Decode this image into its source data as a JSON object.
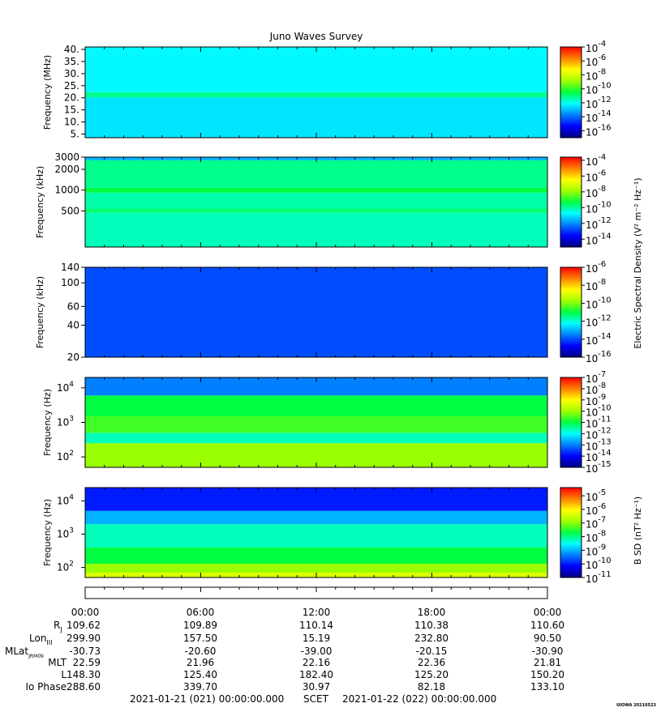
{
  "title": "Juno Waves Survey",
  "colorscale": [
    "#000080",
    "#0000ff",
    "#0080ff",
    "#00ffff",
    "#00ff40",
    "#a0ff00",
    "#ffff00",
    "#ff8000",
    "#ff0000"
  ],
  "chart_data": [
    {
      "type": "heatmap",
      "ylabel": "Frequency (MHz)",
      "yscale": "linear",
      "ylim": [
        3.5,
        41
      ],
      "yticks": [
        {
          "v": 5,
          "label": "5."
        },
        {
          "v": 10,
          "label": "10."
        },
        {
          "v": 15,
          "label": "15."
        },
        {
          "v": 20,
          "label": "20."
        },
        {
          "v": 25,
          "label": "25."
        },
        {
          "v": 30,
          "label": "30."
        },
        {
          "v": 35,
          "label": "35."
        },
        {
          "v": 40,
          "label": "40."
        }
      ],
      "colorbar": {
        "exp_min": -17,
        "exp_max": -4,
        "labels": [
          -16,
          -14,
          -12,
          -10,
          -8,
          -6,
          -4
        ]
      },
      "bands": [
        {
          "from": 3.5,
          "to": 20.2,
          "level": 0.35
        },
        {
          "from": 20.2,
          "to": 22.3,
          "level": 0.45
        },
        {
          "from": 22.3,
          "to": 41,
          "level": 0.37
        }
      ]
    },
    {
      "type": "heatmap",
      "ylabel": "Frequency (kHz)",
      "yscale": "log",
      "ylim": [
        150,
        3000
      ],
      "yticks": [
        {
          "v": 500,
          "label": "500"
        },
        {
          "v": 1000,
          "label": "1000"
        },
        {
          "v": 2000,
          "label": "2000"
        },
        {
          "v": 3000,
          "label": "3000"
        }
      ],
      "colorbar": {
        "exp_min": -15,
        "exp_max": -3.6,
        "labels": [
          -14,
          -12,
          -10,
          -8,
          -6,
          -4
        ]
      },
      "colorbar_title": "Electric Spectral Density (V² m⁻² Hz⁻¹)",
      "bands": [
        {
          "from": 150,
          "to": 470,
          "level": 0.42
        },
        {
          "from": 470,
          "to": 540,
          "level": 0.47
        },
        {
          "from": 540,
          "to": 920,
          "level": 0.43
        },
        {
          "from": 920,
          "to": 1080,
          "level": 0.5
        },
        {
          "from": 1080,
          "to": 2700,
          "level": 0.45
        },
        {
          "from": 2700,
          "to": 3000,
          "level": 0.3
        }
      ]
    },
    {
      "type": "heatmap",
      "ylabel": "Frequency (kHz)",
      "yscale": "log",
      "ylim": [
        20,
        140
      ],
      "yticks": [
        {
          "v": 20,
          "label": "20"
        },
        {
          "v": 40,
          "label": "40"
        },
        {
          "v": 60,
          "label": "60"
        },
        {
          "v": 100,
          "label": "100"
        },
        {
          "v": 140,
          "label": "140"
        }
      ],
      "colorbar": {
        "exp_min": -16,
        "exp_max": -6,
        "labels": [
          -16,
          -14,
          -12,
          -10,
          -8,
          -6
        ]
      },
      "bands": [
        {
          "from": 20,
          "to": 140,
          "level": 0.2
        }
      ]
    },
    {
      "type": "heatmap",
      "ylabel": "Frequency (Hz)",
      "yscale": "log",
      "ylim": [
        50,
        20000
      ],
      "yticks": [
        {
          "v": 100,
          "label": "10",
          "exp": "2"
        },
        {
          "v": 1000,
          "label": "10",
          "exp": "3"
        },
        {
          "v": 10000,
          "label": "10",
          "exp": "4"
        }
      ],
      "colorbar": {
        "exp_min": -15,
        "exp_max": -7,
        "labels": [
          -15,
          -14,
          -13,
          -12,
          -11,
          -10,
          -9,
          -8,
          -7
        ]
      },
      "bands": [
        {
          "from": 50,
          "to": 250,
          "level": 0.62
        },
        {
          "from": 250,
          "to": 500,
          "level": 0.42
        },
        {
          "from": 500,
          "to": 1500,
          "level": 0.55
        },
        {
          "from": 1500,
          "to": 6000,
          "level": 0.5
        },
        {
          "from": 6000,
          "to": 20000,
          "level": 0.25
        }
      ]
    },
    {
      "type": "heatmap",
      "ylabel": "Frequency (Hz)",
      "yscale": "log",
      "ylim": [
        50,
        25000
      ],
      "yticks": [
        {
          "v": 100,
          "label": "10",
          "exp": "2"
        },
        {
          "v": 1000,
          "label": "10",
          "exp": "3"
        },
        {
          "v": 10000,
          "label": "10",
          "exp": "4"
        }
      ],
      "colorbar": {
        "exp_min": -11,
        "exp_max": -4.4,
        "labels": [
          -11,
          -10,
          -9,
          -8,
          -7,
          -6,
          -5
        ]
      },
      "colorbar_title": "B SD (nT² Hz⁻¹)",
      "bands": [
        {
          "from": 50,
          "to": 70,
          "level": 0.7
        },
        {
          "from": 70,
          "to": 130,
          "level": 0.62
        },
        {
          "from": 130,
          "to": 400,
          "level": 0.5
        },
        {
          "from": 400,
          "to": 2000,
          "level": 0.42
        },
        {
          "from": 2000,
          "to": 5000,
          "level": 0.3
        },
        {
          "from": 5000,
          "to": 25000,
          "level": 0.15
        }
      ]
    }
  ],
  "xaxis": {
    "time_labels": [
      "00:00",
      "06:00",
      "12:00",
      "18:00",
      "00:00"
    ],
    "rows": [
      {
        "label": "RJ",
        "values": [
          "109.62",
          "109.89",
          "110.14",
          "110.38",
          "110.60"
        ]
      },
      {
        "label": "LonIII",
        "values": [
          "299.90",
          "157.50",
          "15.19",
          "232.80",
          "90.50"
        ]
      },
      {
        "label": "MLatJRM09",
        "values": [
          "-30.73",
          "-20.60",
          "-39.00",
          "-20.15",
          "-30.90"
        ]
      },
      {
        "label": "MLT",
        "values": [
          "22.59",
          "21.96",
          "22.16",
          "22.36",
          "21.81"
        ]
      },
      {
        "label": "L",
        "values": [
          "148.30",
          "125.40",
          "182.40",
          "125.20",
          "150.20"
        ]
      },
      {
        "label": "Io Phase",
        "values": [
          "288.60",
          "339.70",
          "30.97",
          "82.18",
          "133.10"
        ]
      }
    ],
    "scet_start": "2021-01-21 (021) 00:00:00.000",
    "scet_label": "SCET",
    "scet_end": "2021-01-22 (022) 00:00:00.000"
  },
  "footer": "UIOWA 20210523",
  "labels": {
    "rj_main": "R",
    "rj_sub": "J",
    "lon_main": "Lon",
    "lon_sub": "III",
    "mlat_main": "MLat",
    "mlat_sub": "JRM09",
    "colorbar_exp_base": "10"
  }
}
